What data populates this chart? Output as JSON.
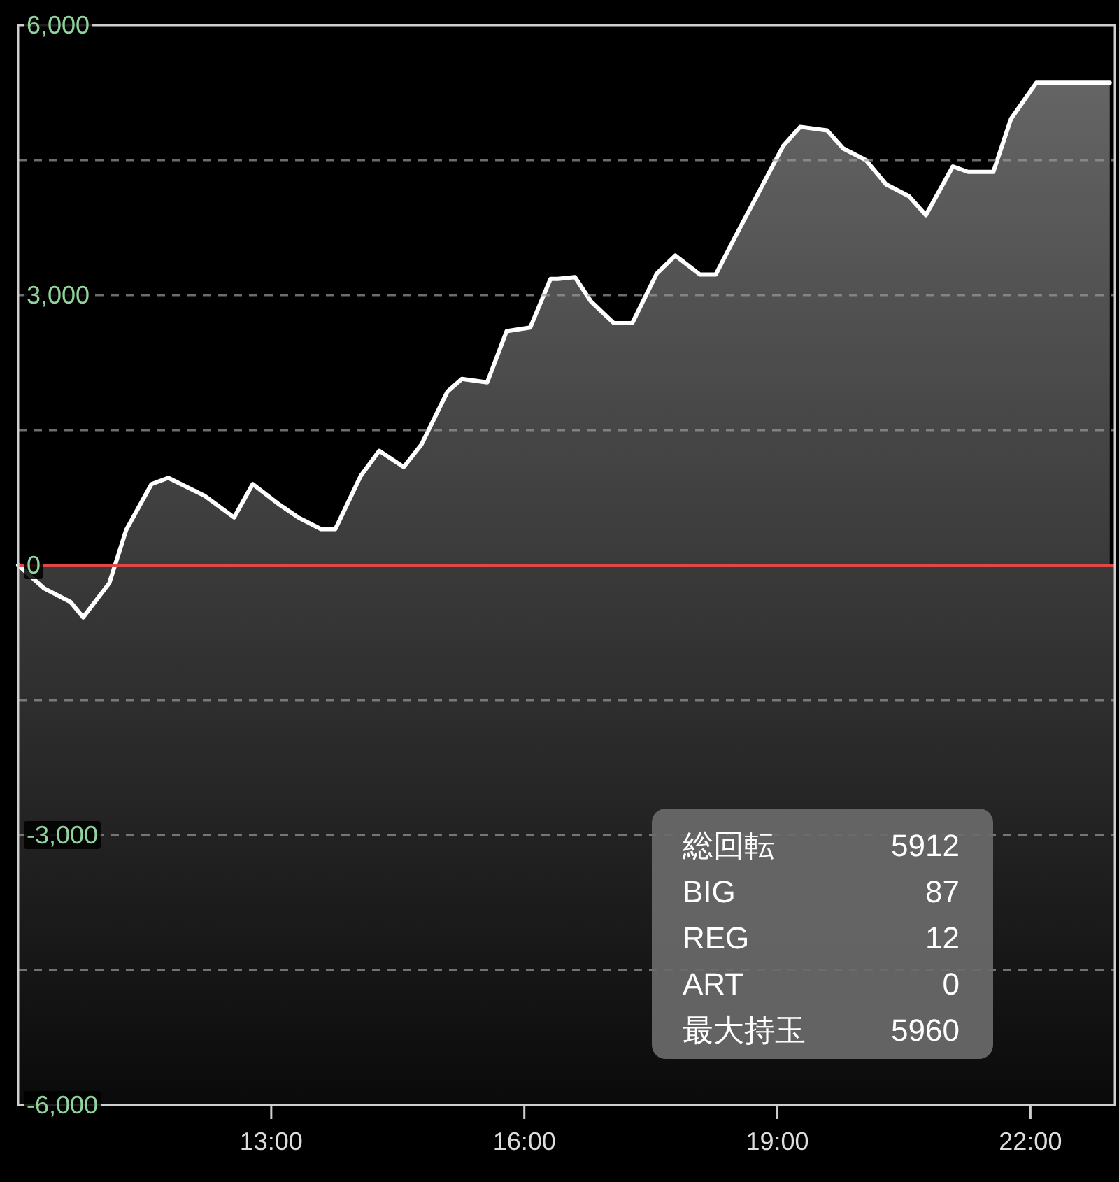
{
  "chart_data": {
    "type": "area",
    "color": "#ffffff",
    "x": [
      10.0,
      10.31,
      10.62,
      10.77,
      11.08,
      11.28,
      11.58,
      11.78,
      12.21,
      12.56,
      12.78,
      13.1,
      13.32,
      13.59,
      13.76,
      14.06,
      14.28,
      14.57,
      14.78,
      15.09,
      15.26,
      15.56,
      15.79,
      16.07,
      16.31,
      16.4,
      16.6,
      16.79,
      17.06,
      17.28,
      17.57,
      17.79,
      18.08,
      18.27,
      18.49,
      19.07,
      19.27,
      19.59,
      19.78,
      20.05,
      20.29,
      20.56,
      20.76,
      21.08,
      21.26,
      21.56,
      21.77,
      22.07,
      22.94
    ],
    "values": [
      0,
      -260,
      -410,
      -580,
      -200,
      390,
      900,
      970,
      770,
      530,
      900,
      670,
      530,
      400,
      400,
      990,
      1270,
      1090,
      1340,
      1930,
      2070,
      2030,
      2600,
      2640,
      3180,
      3180,
      3200,
      2930,
      2690,
      2690,
      3240,
      3440,
      3230,
      3230,
      3630,
      4660,
      4870,
      4830,
      4630,
      4500,
      4230,
      4100,
      3890,
      4430,
      4370,
      4370,
      4960,
      5360,
      5360
    ],
    "xlim": [
      10,
      23
    ],
    "xticks": [
      {
        "value": 13,
        "label": "13:00"
      },
      {
        "value": 16,
        "label": "16:00"
      },
      {
        "value": 19,
        "label": "19:00"
      },
      {
        "value": 22,
        "label": "22:00"
      }
    ],
    "ylim": [
      -6000,
      6000
    ],
    "yticks": [
      {
        "value": 6000,
        "label": "6,000"
      },
      {
        "value": 4500,
        "label": null
      },
      {
        "value": 3000,
        "label": "3,000"
      },
      {
        "value": 1500,
        "label": null
      },
      {
        "value": 0,
        "label": "0"
      },
      {
        "value": -1500,
        "label": null
      },
      {
        "value": -3000,
        "label": "-3,000"
      },
      {
        "value": -4500,
        "label": null
      },
      {
        "value": -6000,
        "label": "-6,000"
      }
    ],
    "grid": "y",
    "line_style": "solid",
    "ref_lines": [
      {
        "axis": "y",
        "value": 0,
        "color": "#e04848"
      }
    ],
    "annotations": [
      "総回転",
      "5912",
      "BIG",
      "87",
      "REG",
      "12",
      "ART",
      "0",
      "最大持玉",
      "5960"
    ]
  }
}
